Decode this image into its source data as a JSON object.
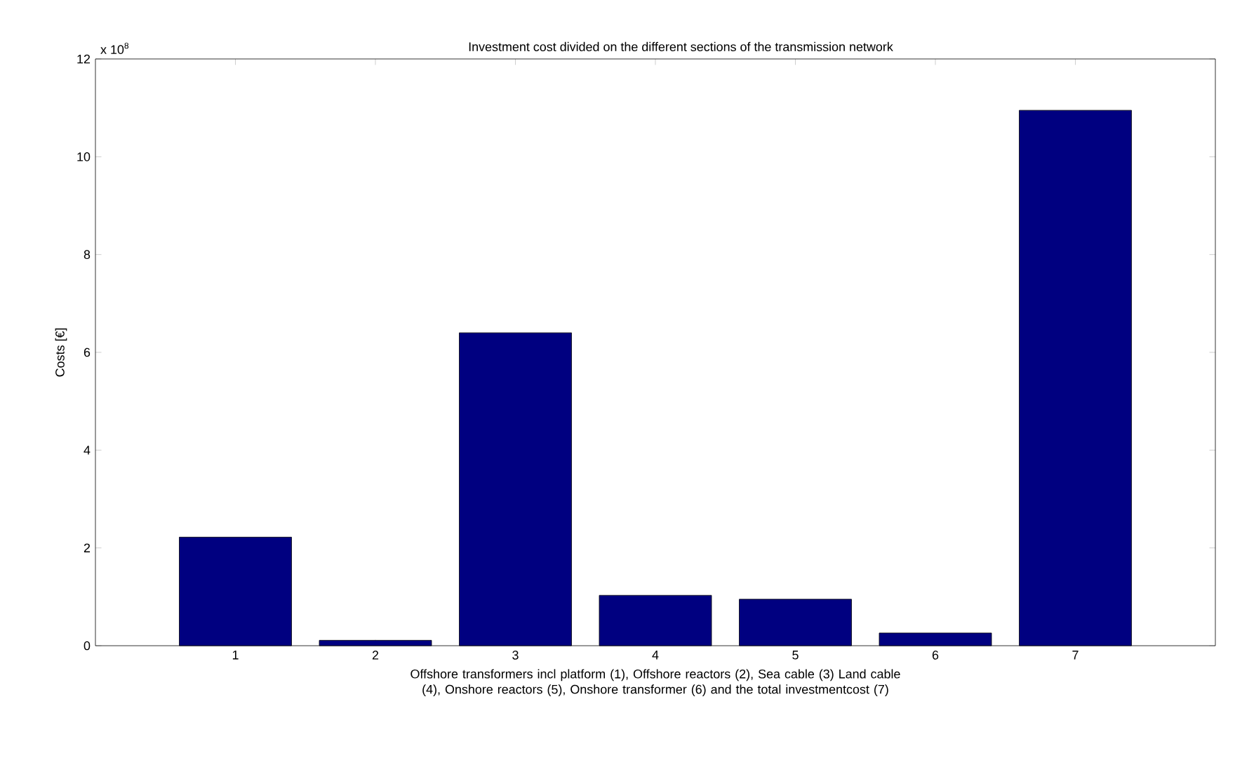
{
  "chart_data": {
    "type": "bar",
    "title": "Investment cost divided on the different sections of the transmission network",
    "xlabel": "Offshore transformers incl platform (1), Offshore reactors (2), Sea cable (3) Land cable (4), Onshore reactors (5), Onshore transformer (6) and the total investmentcost (7)",
    "ylabel": "Costs [€]",
    "annotations": [
      "x 10$^{8}$"
    ],
    "categories": [
      "1",
      "2",
      "3",
      "4",
      "5",
      "6",
      "7"
    ],
    "values": [
      2.22,
      0.11,
      6.4,
      1.03,
      0.95,
      0.26,
      10.95
    ],
    "color": "#000080",
    "ylim": [
      0,
      12
    ],
    "yticks": [
      0,
      2,
      4,
      6,
      8,
      10,
      12
    ],
    "grid": false
  }
}
